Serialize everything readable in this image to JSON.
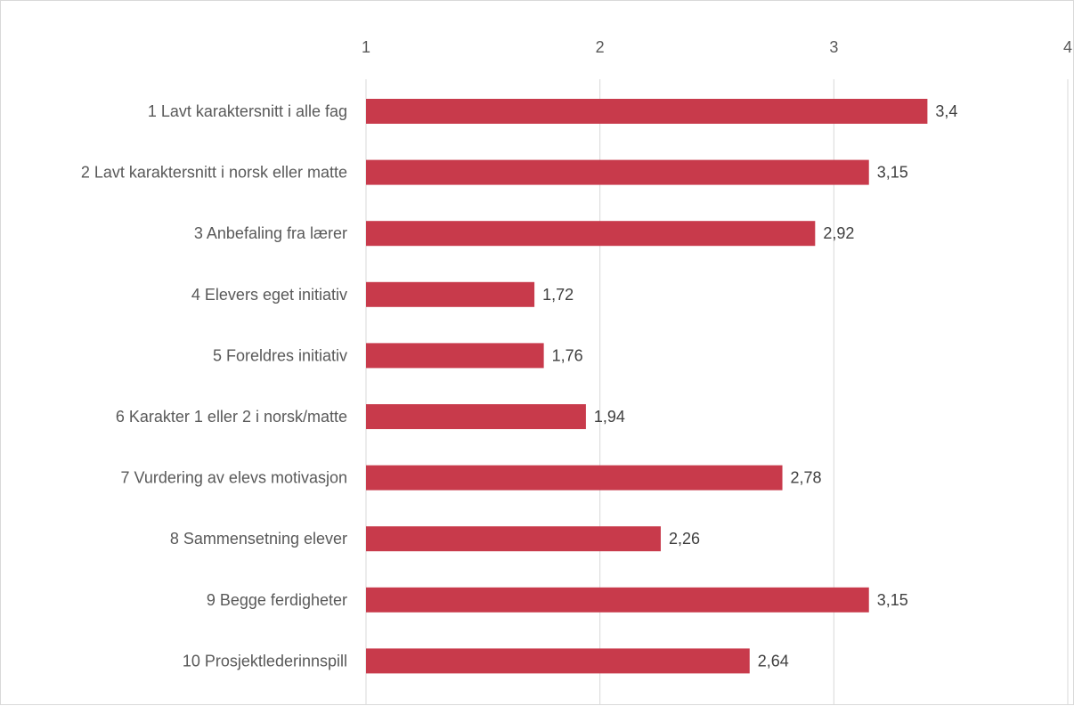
{
  "chart_data": {
    "type": "bar",
    "orientation": "horizontal",
    "title": "",
    "xlabel": "",
    "ylabel": "",
    "xlim": [
      1,
      4
    ],
    "x_ticks": [
      1,
      2,
      3,
      4
    ],
    "x_tick_labels": [
      "1",
      "2",
      "3",
      "4"
    ],
    "grid": true,
    "legend": "none",
    "bar_color": "#C83A4B",
    "categories": [
      "1 Lavt karaktersnitt i alle fag",
      "2 Lavt karaktersnitt i norsk eller matte",
      "3 Anbefaling fra lærer",
      "4 Elevers eget initiativ",
      "5 Foreldres initiativ",
      "6 Karakter 1 eller 2 i norsk/matte",
      "7 Vurdering av elevs motivasjon",
      "8 Sammensetning elever",
      "9 Begge ferdigheter",
      "10 Prosjektlederinnspill"
    ],
    "values": [
      3.4,
      3.15,
      2.92,
      1.72,
      1.76,
      1.94,
      2.78,
      2.26,
      3.15,
      2.64
    ],
    "data_labels": [
      "3,4",
      "3,15",
      "2,92",
      "1,72",
      "1,76",
      "1,94",
      "2,78",
      "2,26",
      "3,15",
      "2,64"
    ]
  }
}
